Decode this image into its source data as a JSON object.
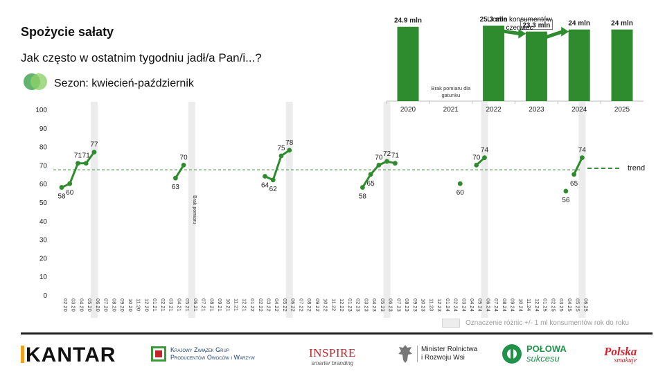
{
  "title": "Spożycie sałaty",
  "question": "Jak często w ostatnim tygodniu jadł/a Pan/i...?",
  "season": {
    "label": "Sezon: kwiecień-październik",
    "icon": "two-green-circles-icon",
    "colors": [
      "#3aa04a",
      "#8ccf6a"
    ]
  },
  "colors": {
    "line": "#2e8b2e",
    "bar": "#2e8b2e",
    "trend": "#3a8a3a",
    "highlight_band": "#ececec",
    "axis_text": "#222222"
  },
  "chart_data": [
    {
      "type": "line",
      "title": "",
      "ylim": [
        0,
        100
      ],
      "yticks": [
        0,
        10,
        20,
        30,
        40,
        50,
        60,
        70,
        80,
        90,
        100
      ],
      "categories": [
        "02.20",
        "03.20",
        "04.20",
        "05.20",
        "06.20",
        "07.20",
        "08.20",
        "09.20",
        "10.20",
        "11.20",
        "12.20",
        "01.21",
        "02.21",
        "03.21",
        "04.21",
        "05.21",
        "06.21",
        "07.21",
        "08.21",
        "09.21",
        "10.21",
        "11.21",
        "12.21",
        "01.22",
        "02.22",
        "03.22",
        "04.22",
        "05.22",
        "06.22",
        "07.22",
        "08.22",
        "09.22",
        "10.22",
        "11.22",
        "12.22",
        "01.23",
        "02.23",
        "03.23",
        "04.23",
        "05.23",
        "06.23",
        "07.23",
        "08.23",
        "09.23",
        "10.23",
        "11.23",
        "12.23",
        "01.24",
        "02.24",
        "03.24",
        "04.24",
        "05.24",
        "06.24",
        "07.24",
        "08.24",
        "09.24",
        "10.24",
        "11.24",
        "12.24",
        "01.25",
        "02.25",
        "03.25",
        "04.25",
        "05.25",
        "06.25"
      ],
      "highlighted_months": [
        "06.20",
        "06.21",
        "06.22",
        "06.23",
        "06.24",
        "06.25"
      ],
      "trend": {
        "label": "trend",
        "value": 67.5
      },
      "annotation_no_measurement": "Brak pomiaru",
      "series": [
        {
          "points": [
            {
              "x": "02.20",
              "y": 58
            },
            {
              "x": "03.20",
              "y": 60
            },
            {
              "x": "04.20",
              "y": 71
            },
            {
              "x": "05.20",
              "y": 71
            },
            {
              "x": "06.20",
              "y": 77
            }
          ]
        },
        {
          "points": [
            {
              "x": "04.21",
              "y": 63
            },
            {
              "x": "05.21",
              "y": 70
            }
          ]
        },
        {
          "points": [
            {
              "x": "03.22",
              "y": 64
            },
            {
              "x": "04.22",
              "y": 62
            },
            {
              "x": "05.22",
              "y": 75
            },
            {
              "x": "06.22",
              "y": 78
            }
          ]
        },
        {
          "points": [
            {
              "x": "03.23",
              "y": 58
            },
            {
              "x": "04.23",
              "y": 65
            },
            {
              "x": "05.23",
              "y": 70
            },
            {
              "x": "06.23",
              "y": 72
            },
            {
              "x": "07.23",
              "y": 71
            }
          ]
        },
        {
          "points": [
            {
              "x": "03.24",
              "y": 60
            }
          ]
        },
        {
          "points": [
            {
              "x": "05.24",
              "y": 70
            },
            {
              "x": "06.24",
              "y": 74
            }
          ]
        },
        {
          "points": [
            {
              "x": "04.25",
              "y": 56
            }
          ]
        },
        {
          "points": [
            {
              "x": "05.25",
              "y": 65
            },
            {
              "x": "06.25",
              "y": 74
            }
          ]
        }
      ],
      "legend": {
        "differences_label": "Oznaczenie różnic +/- 1 ml konsumentów rok do roku"
      }
    },
    {
      "type": "bar",
      "title": "Liczba konsumentów czerwiec",
      "categories": [
        "2020",
        "2021",
        "2022",
        "2023",
        "2024",
        "2025"
      ],
      "values": [
        24.9,
        null,
        25.3,
        23.3,
        24.0,
        24.0
      ],
      "labels": [
        "24.9 mln",
        "",
        "25.3 mln",
        "23.3 mln",
        "24 mln",
        "24 mln"
      ],
      "missing_label": "Brak pomiaru dla gatunku",
      "boxed_labels": [
        "23.3 mln"
      ],
      "arrows": [
        {
          "from": "2022",
          "to": "2023"
        },
        {
          "from": "2023",
          "to": "2024"
        }
      ]
    }
  ],
  "footer": {
    "kantar": "KANTAR",
    "kzgpow": [
      "Krajowy Związek Grup",
      "Producentów Owoców i Warzyw"
    ],
    "inspire": [
      "INSPIRE",
      "smarter branding"
    ],
    "minister": [
      "Minister Rolnictwa",
      "i Rozwoju Wsi"
    ],
    "polowa": [
      "POŁOWA",
      "sukcesu"
    ],
    "polska": [
      "Polska",
      "smakuje"
    ]
  }
}
